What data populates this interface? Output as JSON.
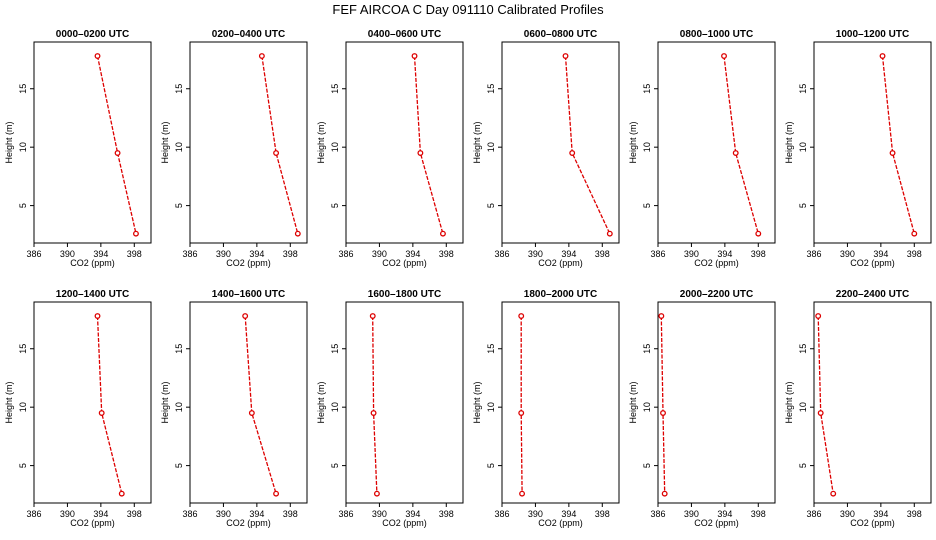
{
  "title": "FEF AIRCOA C  Day 091110  Calibrated Profiles",
  "chart_data": [
    {
      "type": "line",
      "title": "0000–0200 UTC",
      "xlabel": "CO2 (ppm)",
      "ylabel": "Height (m)",
      "xlim": [
        386,
        400
      ],
      "ylim": [
        1.8,
        19
      ],
      "xticks": [
        386,
        390,
        394,
        398
      ],
      "yticks": [
        5,
        10,
        15
      ],
      "x": [
        393.6,
        396.0,
        398.2
      ],
      "y": [
        17.8,
        9.5,
        2.6
      ]
    },
    {
      "type": "line",
      "title": "0200–0400 UTC",
      "xlabel": "CO2 (ppm)",
      "ylabel": "Height (m)",
      "xlim": [
        386,
        400
      ],
      "ylim": [
        1.8,
        19
      ],
      "xticks": [
        386,
        390,
        394,
        398
      ],
      "yticks": [
        5,
        10,
        15
      ],
      "x": [
        394.6,
        396.3,
        398.9
      ],
      "y": [
        17.8,
        9.5,
        2.6
      ]
    },
    {
      "type": "line",
      "title": "0400–0600 UTC",
      "xlabel": "CO2 (ppm)",
      "ylabel": "Height (m)",
      "xlim": [
        386,
        400
      ],
      "ylim": [
        1.8,
        19
      ],
      "xticks": [
        386,
        390,
        394,
        398
      ],
      "yticks": [
        5,
        10,
        15
      ],
      "x": [
        394.2,
        394.9,
        397.6
      ],
      "y": [
        17.8,
        9.5,
        2.6
      ]
    },
    {
      "type": "line",
      "title": "0600–0800 UTC",
      "xlabel": "CO2 (ppm)",
      "ylabel": "Height (m)",
      "xlim": [
        386,
        400
      ],
      "ylim": [
        1.8,
        19
      ],
      "xticks": [
        386,
        390,
        394,
        398
      ],
      "yticks": [
        5,
        10,
        15
      ],
      "x": [
        393.6,
        394.4,
        398.9
      ],
      "y": [
        17.8,
        9.5,
        2.6
      ]
    },
    {
      "type": "line",
      "title": "0800–1000 UTC",
      "xlabel": "CO2 (ppm)",
      "ylabel": "Height (m)",
      "xlim": [
        386,
        400
      ],
      "ylim": [
        1.8,
        19
      ],
      "xticks": [
        386,
        390,
        394,
        398
      ],
      "yticks": [
        5,
        10,
        15
      ],
      "x": [
        393.9,
        395.3,
        398.0
      ],
      "y": [
        17.8,
        9.5,
        2.6
      ]
    },
    {
      "type": "line",
      "title": "1000–1200 UTC",
      "xlabel": "CO2 (ppm)",
      "ylabel": "Height (m)",
      "xlim": [
        386,
        400
      ],
      "ylim": [
        1.8,
        19
      ],
      "xticks": [
        386,
        390,
        394,
        398
      ],
      "yticks": [
        5,
        10,
        15
      ],
      "x": [
        394.2,
        395.4,
        398.0
      ],
      "y": [
        17.8,
        9.5,
        2.6
      ]
    },
    {
      "type": "line",
      "title": "1200–1400 UTC",
      "xlabel": "CO2 (ppm)",
      "ylabel": "Height (m)",
      "xlim": [
        386,
        400
      ],
      "ylim": [
        1.8,
        19
      ],
      "xticks": [
        386,
        390,
        394,
        398
      ],
      "yticks": [
        5,
        10,
        15
      ],
      "x": [
        393.6,
        394.1,
        396.5
      ],
      "y": [
        17.8,
        9.5,
        2.6
      ]
    },
    {
      "type": "line",
      "title": "1400–1600 UTC",
      "xlabel": "CO2 (ppm)",
      "ylabel": "Height (m)",
      "xlim": [
        386,
        400
      ],
      "ylim": [
        1.8,
        19
      ],
      "xticks": [
        386,
        390,
        394,
        398
      ],
      "yticks": [
        5,
        10,
        15
      ],
      "x": [
        392.6,
        393.4,
        396.3
      ],
      "y": [
        17.8,
        9.5,
        2.6
      ]
    },
    {
      "type": "line",
      "title": "1600–1800 UTC",
      "xlabel": "CO2 (ppm)",
      "ylabel": "Height (m)",
      "xlim": [
        386,
        400
      ],
      "ylim": [
        1.8,
        19
      ],
      "xticks": [
        386,
        390,
        394,
        398
      ],
      "yticks": [
        5,
        10,
        15
      ],
      "x": [
        389.2,
        389.3,
        389.7
      ],
      "y": [
        17.8,
        9.5,
        2.6
      ]
    },
    {
      "type": "line",
      "title": "1800–2000 UTC",
      "xlabel": "CO2 (ppm)",
      "ylabel": "Height (m)",
      "xlim": [
        386,
        400
      ],
      "ylim": [
        1.8,
        19
      ],
      "xticks": [
        386,
        390,
        394,
        398
      ],
      "yticks": [
        5,
        10,
        15
      ],
      "x": [
        388.3,
        388.3,
        388.4
      ],
      "y": [
        17.8,
        9.5,
        2.6
      ]
    },
    {
      "type": "line",
      "title": "2000–2200 UTC",
      "xlabel": "CO2 (ppm)",
      "ylabel": "Height (m)",
      "xlim": [
        386,
        400
      ],
      "ylim": [
        1.8,
        19
      ],
      "xticks": [
        386,
        390,
        394,
        398
      ],
      "yticks": [
        5,
        10,
        15
      ],
      "x": [
        386.4,
        386.6,
        386.8
      ],
      "y": [
        17.8,
        9.5,
        2.6
      ]
    },
    {
      "type": "line",
      "title": "2200–2400 UTC",
      "xlabel": "CO2 (ppm)",
      "ylabel": "Height (m)",
      "xlim": [
        386,
        400
      ],
      "ylim": [
        1.8,
        19
      ],
      "xticks": [
        386,
        390,
        394,
        398
      ],
      "yticks": [
        5,
        10,
        15
      ],
      "x": [
        386.5,
        386.8,
        388.3
      ],
      "y": [
        17.8,
        9.5,
        2.6
      ]
    }
  ],
  "colors": {
    "series": "#dd0000",
    "axis": "#000000",
    "background": "#ffffff"
  }
}
